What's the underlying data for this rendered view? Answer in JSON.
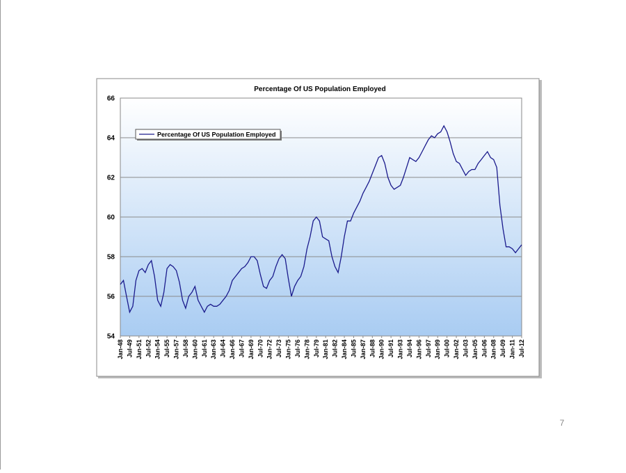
{
  "page_number": "7",
  "chart_data": {
    "type": "line",
    "title": "Percentage Of US Population Employed",
    "categories": [
      "Jan-48",
      null,
      null,
      "Jul-49",
      null,
      null,
      "Jan-51",
      null,
      null,
      "Jul-52",
      null,
      null,
      "Jan-54",
      null,
      null,
      "Jul-55",
      null,
      null,
      "Jan-57",
      null,
      null,
      "Jul-58",
      null,
      null,
      "Jan-60",
      null,
      null,
      "Jul-61",
      null,
      null,
      "Jan-63",
      null,
      null,
      "Jul-64",
      null,
      null,
      "Jan-66",
      null,
      null,
      "Jul-67",
      null,
      null,
      "Jan-69",
      null,
      null,
      "Jul-70",
      null,
      null,
      "Jan-72",
      null,
      null,
      "Jul-73",
      null,
      null,
      "Jan-75",
      null,
      null,
      "Jul-76",
      null,
      null,
      "Jan-78",
      null,
      null,
      "Jul-79",
      null,
      null,
      "Jan-81",
      null,
      null,
      "Jul-82",
      null,
      null,
      "Jan-84",
      null,
      null,
      "Jul-85",
      null,
      null,
      "Jan-87",
      null,
      null,
      "Jul-88",
      null,
      null,
      "Jan-90",
      null,
      null,
      "Jul-91",
      null,
      null,
      "Jan-93",
      null,
      null,
      "Jul-94",
      null,
      null,
      "Jan-96",
      null,
      null,
      "Jul-97",
      null,
      null,
      "Jan-99",
      null,
      null,
      "Jul-00",
      null,
      null,
      "Jan-02",
      null,
      null,
      "Jul-03",
      null,
      null,
      "Jan-05",
      null,
      null,
      "Jul-06",
      null,
      null,
      "Jan-08",
      null,
      null,
      "Jul-09",
      null,
      null,
      "Jan-11",
      null,
      null,
      "Jul-12"
    ],
    "series": [
      {
        "name": "Percentage Of US Population Employed",
        "color": "#1a1a8c",
        "values": [
          56.6,
          56.8,
          56.0,
          55.2,
          55.5,
          56.8,
          57.3,
          57.4,
          57.2,
          57.6,
          57.8,
          57.0,
          55.8,
          55.5,
          56.2,
          57.4,
          57.6,
          57.5,
          57.3,
          56.7,
          55.8,
          55.4,
          56.0,
          56.2,
          56.5,
          55.8,
          55.5,
          55.2,
          55.5,
          55.6,
          55.5,
          55.5,
          55.6,
          55.8,
          56.0,
          56.3,
          56.8,
          57.0,
          57.2,
          57.4,
          57.5,
          57.7,
          58.0,
          58.0,
          57.8,
          57.1,
          56.5,
          56.4,
          56.8,
          57.0,
          57.5,
          57.9,
          58.1,
          57.9,
          56.9,
          56.0,
          56.5,
          56.8,
          57.0,
          57.5,
          58.4,
          59.0,
          59.8,
          60.0,
          59.8,
          59.0,
          58.9,
          58.8,
          58.0,
          57.5,
          57.2,
          58.0,
          59.0,
          59.8,
          59.8,
          60.2,
          60.5,
          60.8,
          61.2,
          61.5,
          61.8,
          62.2,
          62.6,
          63.0,
          63.1,
          62.7,
          62.0,
          61.6,
          61.4,
          61.5,
          61.6,
          62.0,
          62.5,
          63.0,
          62.9,
          62.8,
          63.0,
          63.3,
          63.6,
          63.9,
          64.1,
          64.0,
          64.2,
          64.3,
          64.6,
          64.3,
          63.8,
          63.2,
          62.8,
          62.7,
          62.4,
          62.1,
          62.3,
          62.4,
          62.4,
          62.7,
          62.9,
          63.1,
          63.3,
          63.0,
          62.9,
          62.5,
          60.6,
          59.4,
          58.5,
          58.5,
          58.4,
          58.2,
          58.4,
          58.6
        ]
      }
    ],
    "ylim": [
      54,
      66
    ],
    "yticks": [
      54,
      56,
      58,
      60,
      62,
      64,
      66
    ],
    "grid": true,
    "legend": "top-left"
  }
}
